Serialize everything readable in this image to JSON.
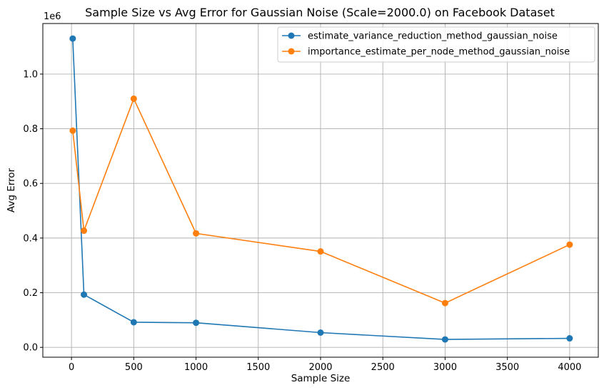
{
  "chart_data": {
    "type": "line",
    "title": "Sample Size vs Avg Error for Gaussian Noise (Scale=2000.0) on Facebook Dataset",
    "xlabel": "Sample Size",
    "ylabel": "Avg Error",
    "y_multiplier_label": "1e6",
    "xlim": [
      -230,
      4230
    ],
    "ylim": [
      -0.036,
      1.185
    ],
    "x_ticks": [
      0,
      500,
      1000,
      1500,
      2000,
      2500,
      3000,
      3500,
      4000
    ],
    "x_tick_labels": [
      "0",
      "500",
      "1000",
      "1500",
      "2000",
      "2500",
      "3000",
      "3500",
      "4000"
    ],
    "y_ticks": [
      0.0,
      0.2,
      0.4,
      0.6,
      0.8,
      1.0
    ],
    "y_tick_labels": [
      "0.0",
      "0.2",
      "0.4",
      "0.6",
      "0.8",
      "1.0"
    ],
    "grid": true,
    "legend_position": "top-right",
    "series": [
      {
        "name": "estimate_variance_reduction_method_gaussian_noise",
        "color": "#1f77b4",
        "x": [
          10,
          100,
          500,
          1000,
          2000,
          3000,
          4000
        ],
        "y": [
          1.13,
          0.193,
          0.092,
          0.09,
          0.054,
          0.029,
          0.033
        ]
      },
      {
        "name": "importance_estimate_per_node_method_gaussian_noise",
        "color": "#ff7f0e",
        "x": [
          10,
          100,
          500,
          1000,
          2000,
          3000,
          4000
        ],
        "y": [
          0.793,
          0.427,
          0.91,
          0.417,
          0.351,
          0.162,
          0.376
        ]
      }
    ]
  }
}
